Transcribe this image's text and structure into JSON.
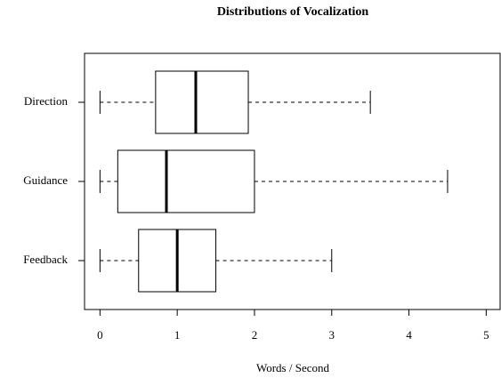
{
  "chart_data": {
    "type": "boxplot",
    "orientation": "horizontal",
    "title": "Distributions of Vocalization",
    "x_label": "Words / Second",
    "categories": [
      "Direction",
      "Guidance",
      "Feedback"
    ],
    "boxes": [
      {
        "min": 0,
        "q1": 0.72,
        "median": 1.24,
        "q3": 1.92,
        "max": 3.5
      },
      {
        "min": 0,
        "q1": 0.23,
        "median": 0.86,
        "q3": 2.0,
        "max": 4.5
      },
      {
        "min": 0,
        "q1": 0.5,
        "median": 1.0,
        "q3": 1.5,
        "max": 3.0
      }
    ],
    "color": "#000000",
    "xlim": [
      -0.2,
      5.18
    ],
    "xticks": [
      0,
      1,
      2,
      3,
      4,
      5
    ],
    "grid": false
  }
}
